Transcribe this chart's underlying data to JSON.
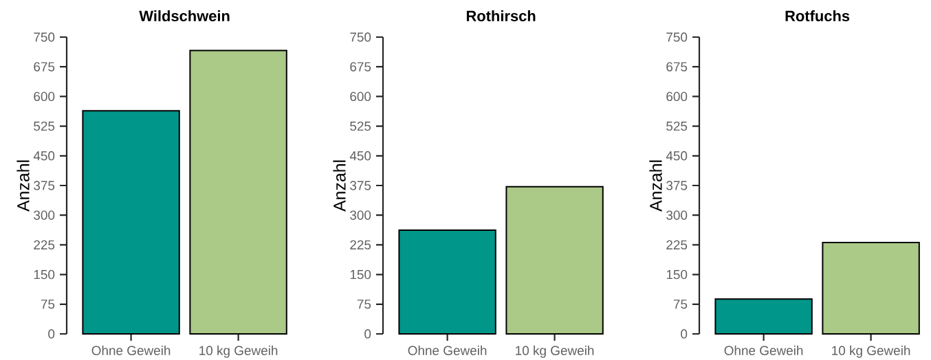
{
  "chart_data": [
    {
      "type": "bar",
      "title": "Wildschwein",
      "ylabel": "Anzahl",
      "categories": [
        "Ohne Geweih",
        "10 kg Geweih"
      ],
      "values": [
        564,
        716
      ],
      "colors": [
        "#00968a",
        "#abc987"
      ],
      "ylim": [
        0,
        750
      ],
      "yticks": [
        0,
        75,
        150,
        225,
        300,
        375,
        450,
        525,
        600,
        675,
        750
      ]
    },
    {
      "type": "bar",
      "title": "Rothirsch",
      "ylabel": "Anzahl",
      "categories": [
        "Ohne Geweih",
        "10 kg Geweih"
      ],
      "values": [
        262,
        372
      ],
      "colors": [
        "#00968a",
        "#abc987"
      ],
      "ylim": [
        0,
        750
      ],
      "yticks": [
        0,
        75,
        150,
        225,
        300,
        375,
        450,
        525,
        600,
        675,
        750
      ]
    },
    {
      "type": "bar",
      "title": "Rotfuchs",
      "ylabel": "Anzahl",
      "categories": [
        "Ohne Geweih",
        "10 kg Geweih"
      ],
      "values": [
        88,
        231
      ],
      "colors": [
        "#00968a",
        "#abc987"
      ],
      "ylim": [
        0,
        750
      ],
      "yticks": [
        0,
        75,
        150,
        225,
        300,
        375,
        450,
        525,
        600,
        675,
        750
      ]
    }
  ]
}
